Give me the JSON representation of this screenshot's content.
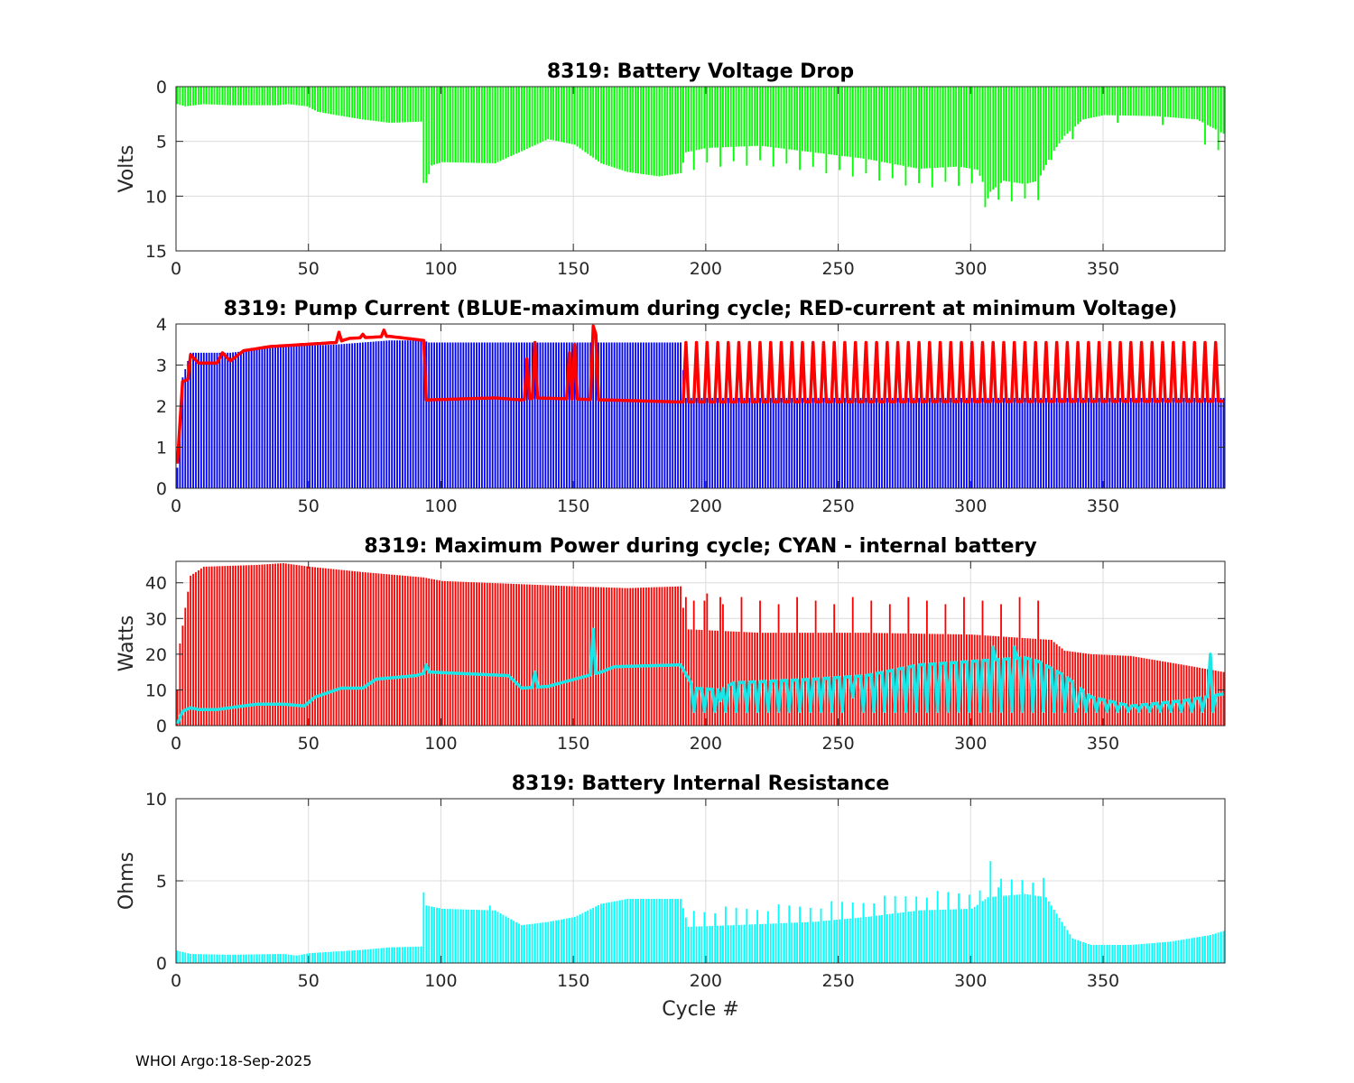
{
  "footer": "WHOI Argo:18-Sep-2025",
  "colors": {
    "green": "#00ff00",
    "blue": "#0000ff",
    "red": "#ff0000",
    "cyan": "#00ffff",
    "cyan_line": "#19e6e6"
  },
  "chart_data": [
    {
      "type": "bar",
      "title": "8319: Battery Voltage Drop",
      "ylabel": "Volts",
      "xlabel": "",
      "xlim": [
        0,
        396
      ],
      "ylim": [
        0,
        15
      ],
      "y_reversed": true,
      "xticks": [
        0,
        50,
        100,
        150,
        200,
        250,
        300,
        350
      ],
      "yticks": [
        0,
        5,
        10,
        15
      ],
      "grid": true,
      "series": [
        {
          "name": "Voltage drop",
          "color": "#00ff00",
          "knots": [
            [
              0,
              1.6
            ],
            [
              3,
              1.8
            ],
            [
              10,
              1.6
            ],
            [
              20,
              1.7
            ],
            [
              38,
              1.7
            ],
            [
              42,
              1.6
            ],
            [
              49,
              1.8
            ],
            [
              53,
              2.3
            ],
            [
              60,
              2.6
            ],
            [
              70,
              3.0
            ],
            [
              80,
              3.3
            ],
            [
              92,
              3.2
            ],
            [
              94,
              8.8
            ],
            [
              96,
              7.2
            ],
            [
              100,
              6.9
            ],
            [
              120,
              7.0
            ],
            [
              130,
              5.9
            ],
            [
              140,
              4.8
            ],
            [
              150,
              5.3
            ],
            [
              160,
              7.0
            ],
            [
              170,
              7.8
            ],
            [
              182,
              8.2
            ],
            [
              190,
              7.9
            ],
            [
              192,
              6.0
            ],
            [
              200,
              5.6
            ],
            [
              220,
              5.4
            ],
            [
              240,
              6.0
            ],
            [
              260,
              6.6
            ],
            [
              280,
              7.5
            ],
            [
              295,
              7.3
            ],
            [
              302,
              7.6
            ],
            [
              306,
              9.8
            ],
            [
              312,
              8.6
            ],
            [
              320,
              8.9
            ],
            [
              325,
              8.6
            ],
            [
              330,
              6.2
            ],
            [
              335,
              4.5
            ],
            [
              342,
              3.0
            ],
            [
              350,
              2.6
            ],
            [
              370,
              2.7
            ],
            [
              385,
              3.0
            ],
            [
              395,
              4.3
            ]
          ],
          "spikes": [
            [
              93,
              8.8
            ],
            [
              306,
              10.2
            ],
            [
              330,
              6.7
            ],
            [
              338,
              4.8
            ],
            [
              355,
              3.3
            ],
            [
              372,
              3.5
            ],
            [
              388,
              5.3
            ],
            [
              393,
              5.8
            ]
          ],
          "spike_every": 5,
          "spike_start": 195,
          "spike_end": 330,
          "spike_amp": 2.2
        }
      ]
    },
    {
      "type": "bar",
      "title": "8319: Pump Current (BLUE-maximum during cycle; RED-current at minimum Voltage)",
      "ylabel": "",
      "xlabel": "",
      "xlim": [
        0,
        396
      ],
      "ylim": [
        0,
        4
      ],
      "xticks": [
        0,
        50,
        100,
        150,
        200,
        250,
        300,
        350
      ],
      "yticks": [
        0,
        1,
        2,
        3,
        4
      ],
      "grid": true,
      "series": [
        {
          "name": "BLUE-maximum during cycle",
          "type": "bar",
          "color": "#0000ff",
          "knots": [
            [
              0,
              0.5
            ],
            [
              2,
              2.7
            ],
            [
              5,
              3.3
            ],
            [
              20,
              3.3
            ],
            [
              40,
              3.45
            ],
            [
              60,
              3.5
            ],
            [
              80,
              3.6
            ],
            [
              93,
              3.6
            ],
            [
              95,
              3.55
            ],
            [
              190,
              3.55
            ],
            [
              192,
              2.2
            ],
            [
              396,
              2.2
            ]
          ]
        },
        {
          "name": "RED-current at minimum Voltage",
          "type": "line",
          "color": "#ff0000",
          "knots": [
            [
              0,
              0.6
            ],
            [
              2,
              2.6
            ],
            [
              4,
              2.65
            ],
            [
              5,
              3.25
            ],
            [
              8,
              3.05
            ],
            [
              15,
              3.05
            ],
            [
              17,
              3.3
            ],
            [
              20,
              3.1
            ],
            [
              25,
              3.35
            ],
            [
              35,
              3.45
            ],
            [
              60,
              3.55
            ],
            [
              65,
              3.65
            ],
            [
              80,
              3.7
            ],
            [
              93,
              3.6
            ],
            [
              94,
              2.15
            ],
            [
              120,
              2.2
            ],
            [
              130,
              2.15
            ],
            [
              135,
              2.2
            ],
            [
              190,
              2.1
            ],
            [
              396,
              2.12
            ]
          ],
          "spikes": [
            [
              61,
              3.8
            ],
            [
              70,
              3.75
            ],
            [
              78,
              3.85
            ],
            [
              132,
              3.15
            ],
            [
              135,
              3.55
            ],
            [
              148,
              3.3
            ],
            [
              150,
              3.5
            ],
            [
              157,
              3.95
            ],
            [
              158,
              3.75
            ]
          ],
          "spike_every": 4,
          "spike_start": 192,
          "spike_end": 394,
          "spike_amp": 3.55
        }
      ]
    },
    {
      "type": "bar",
      "title": "8319: Maximum Power during cycle; CYAN - internal battery",
      "ylabel": "Watts",
      "xlabel": "",
      "xlim": [
        0,
        396
      ],
      "ylim": [
        0,
        46
      ],
      "xticks": [
        0,
        50,
        100,
        150,
        200,
        250,
        300,
        350
      ],
      "yticks": [
        0,
        10,
        20,
        30,
        40
      ],
      "grid": true,
      "series": [
        {
          "name": "Maximum Power during cycle",
          "type": "bar",
          "color": "#ff0000",
          "knots": [
            [
              0,
              10
            ],
            [
              1,
              23
            ],
            [
              3,
              33
            ],
            [
              5,
              42
            ],
            [
              10,
              44.5
            ],
            [
              30,
              45
            ],
            [
              40,
              45.5
            ],
            [
              50,
              44.5
            ],
            [
              70,
              43
            ],
            [
              93,
              41.5
            ],
            [
              100,
              40.5
            ],
            [
              150,
              39
            ],
            [
              170,
              38.5
            ],
            [
              190,
              39
            ],
            [
              192,
              27
            ],
            [
              220,
              26
            ],
            [
              260,
              26
            ],
            [
              300,
              25.5
            ],
            [
              320,
              24.5
            ],
            [
              330,
              24
            ],
            [
              335,
              21
            ],
            [
              345,
              20
            ],
            [
              360,
              19.5
            ],
            [
              380,
              17
            ],
            [
              395,
              15
            ]
          ],
          "spikes": [
            [
              195,
              35
            ],
            [
              200,
              37
            ],
            [
              205,
              36
            ]
          ],
          "spike_every": 7,
          "spike_start": 192,
          "spike_end": 330,
          "spike_amp": 36
        },
        {
          "name": "CYAN - internal battery",
          "type": "line",
          "color": "#19e6e6",
          "knots": [
            [
              0,
              0.5
            ],
            [
              2,
              4
            ],
            [
              5,
              5
            ],
            [
              8,
              4.5
            ],
            [
              15,
              4.5
            ],
            [
              20,
              5
            ],
            [
              30,
              6
            ],
            [
              40,
              6
            ],
            [
              48,
              5.5
            ],
            [
              52,
              8
            ],
            [
              58,
              9.5
            ],
            [
              62,
              10.5
            ],
            [
              70,
              10.5
            ],
            [
              75,
              13
            ],
            [
              90,
              14
            ],
            [
              95,
              15
            ],
            [
              110,
              14.5
            ],
            [
              125,
              14
            ],
            [
              130,
              10.5
            ],
            [
              140,
              11
            ],
            [
              150,
              13
            ],
            [
              155,
              14
            ],
            [
              160,
              15
            ],
            [
              165,
              16.5
            ],
            [
              190,
              17
            ],
            [
              195,
              10.5
            ],
            [
              205,
              10
            ],
            [
              210,
              12
            ],
            [
              240,
              13
            ],
            [
              260,
              14
            ],
            [
              280,
              17
            ],
            [
              300,
              18
            ],
            [
              320,
              19
            ],
            [
              325,
              18
            ],
            [
              335,
              14
            ],
            [
              345,
              8
            ],
            [
              360,
              5.5
            ],
            [
              380,
              7
            ],
            [
              396,
              9
            ]
          ],
          "spikes": [
            [
              94,
              17
            ],
            [
              135,
              15
            ],
            [
              157,
              27
            ],
            [
              205,
              7
            ],
            [
              255,
              8
            ],
            [
              308,
              22
            ],
            [
              316,
              22
            ],
            [
              340,
              6
            ],
            [
              390,
              20
            ]
          ],
          "spike_every": 4,
          "spike_start": 195,
          "spike_end": 394,
          "spike_amp": 4
        }
      ]
    },
    {
      "type": "bar",
      "title": "8319: Battery Internal Resistance",
      "ylabel": "Ohms",
      "xlabel": "Cycle #",
      "xlim": [
        0,
        396
      ],
      "ylim": [
        0,
        10
      ],
      "xticks": [
        0,
        50,
        100,
        150,
        200,
        250,
        300,
        350
      ],
      "yticks": [
        0,
        5,
        10
      ],
      "grid": true,
      "series": [
        {
          "name": "Internal Resistance",
          "color": "#00ffff",
          "knots": [
            [
              0,
              0.75
            ],
            [
              5,
              0.55
            ],
            [
              20,
              0.5
            ],
            [
              40,
              0.55
            ],
            [
              45,
              0.45
            ],
            [
              50,
              0.6
            ],
            [
              60,
              0.7
            ],
            [
              70,
              0.8
            ],
            [
              80,
              0.95
            ],
            [
              92,
              1.0
            ],
            [
              94,
              3.5
            ],
            [
              100,
              3.3
            ],
            [
              120,
              3.2
            ],
            [
              130,
              2.3
            ],
            [
              140,
              2.5
            ],
            [
              150,
              2.8
            ],
            [
              160,
              3.6
            ],
            [
              170,
              3.9
            ],
            [
              190,
              3.9
            ],
            [
              193,
              2.2
            ],
            [
              210,
              2.3
            ],
            [
              240,
              2.5
            ],
            [
              260,
              2.8
            ],
            [
              280,
              3.2
            ],
            [
              300,
              3.3
            ],
            [
              306,
              4.0
            ],
            [
              320,
              4.2
            ],
            [
              328,
              4.0
            ],
            [
              332,
              3.0
            ],
            [
              338,
              1.5
            ],
            [
              345,
              1.1
            ],
            [
              360,
              1.1
            ],
            [
              375,
              1.3
            ],
            [
              390,
              1.7
            ],
            [
              396,
              2.0
            ]
          ],
          "spikes": [
            [
              93,
              4.3
            ],
            [
              118,
              3.5
            ],
            [
              307,
              6.2
            ],
            [
              310,
              4.6
            ]
          ],
          "spike_every": 4,
          "spike_start": 195,
          "spike_end": 330,
          "spike_amp": 1.2
        }
      ]
    }
  ]
}
